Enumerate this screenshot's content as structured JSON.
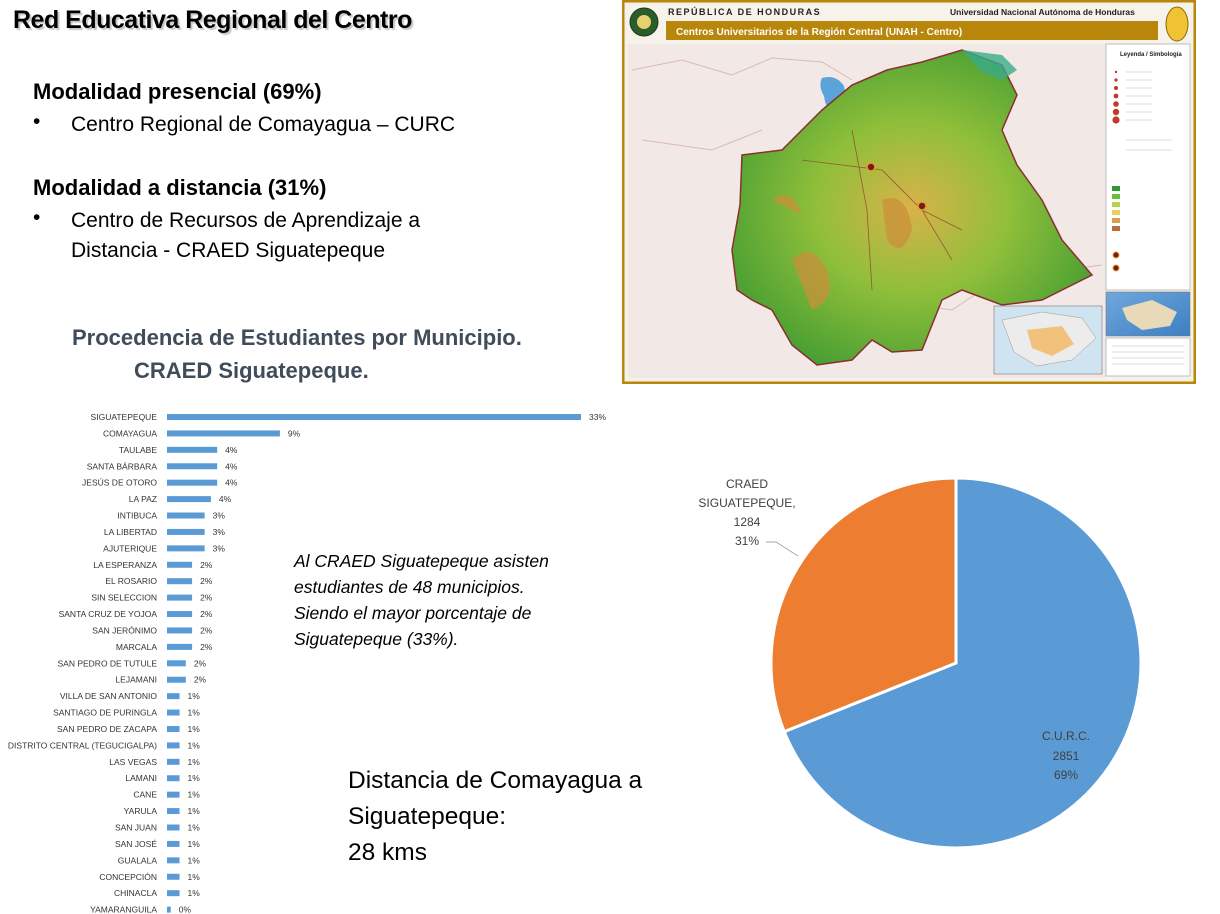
{
  "title": "Red Educativa Regional del Centro",
  "modalities": [
    {
      "heading": "Modalidad presencial (69%)",
      "items": [
        "Centro Regional de Comayagua – CURC"
      ]
    },
    {
      "heading": "Modalidad a distancia (31%)",
      "items": [
        "Centro de Recursos de Aprendizaje a",
        "Distancia - CRAED Siguatepeque"
      ]
    }
  ],
  "bullet_char": "•",
  "procedencia": {
    "line1": "Procedencia de Estudiantes por Municipio.",
    "line2": "CRAED Siguatepeque."
  },
  "note": [
    "Al CRAED Siguatepeque asisten",
    "estudiantes de 48 municipios.",
    "Siendo el mayor porcentaje de",
    "Siguatepeque (33%)."
  ],
  "distance": [
    "Distancia de Comayagua a",
    "Siguatepeque:",
    "28 kms"
  ],
  "map": {
    "header_left": "REPÚBLICA  DE  HONDURAS",
    "header_right": "Universidad Nacional Autónoma de Honduras",
    "subtitle": "Centros Universitarios de la Región Central (UNAH - Centro)",
    "legend_title": "Leyenda / Simbología",
    "border_color": "#b8860b",
    "banner_color": "#b8860b"
  },
  "chart_data": [
    {
      "type": "bar",
      "orientation": "horizontal",
      "categories": [
        "SIGUATEPEQUE",
        "COMAYAGUA",
        "TAULABE",
        "SANTA BÁRBARA",
        "JESÚS DE OTORO",
        "LA PAZ",
        "INTIBUCA",
        "LA LIBERTAD",
        "AJUTERIQUE",
        "LA ESPERANZA",
        "EL ROSARIO",
        "SIN SELECCION",
        "SANTA CRUZ DE YOJOA",
        "SAN JERÓNIMO",
        "MARCALA",
        "SAN PEDRO DE TUTULE",
        "LEJAMANI",
        "VILLA DE SAN ANTONIO",
        "SANTIAGO DE PURINGLA",
        "SAN PEDRO DE ZACAPA",
        "DISTRITO CENTRAL (TEGUCIGALPA)",
        "LAS VEGAS",
        "LAMANI",
        "CANE",
        "YARULA",
        "SAN JUAN",
        "SAN JOSÉ",
        "GUALALA",
        "CONCEPCIÓN",
        "CHINACLA",
        "YAMARANGUILA"
      ],
      "values": [
        33,
        9,
        4,
        4,
        4,
        3.5,
        3,
        3,
        3,
        2,
        2,
        2,
        2,
        2,
        2,
        1.5,
        1.5,
        1,
        1,
        1,
        1,
        1,
        1,
        1,
        1,
        1,
        1,
        1,
        1,
        1,
        0.3
      ],
      "labels": [
        "33%",
        "9%",
        "4%",
        "4%",
        "4%",
        "4%",
        "3%",
        "3%",
        "3%",
        "2%",
        "2%",
        "2%",
        "2%",
        "2%",
        "2%",
        "2%",
        "2%",
        "1%",
        "1%",
        "1%",
        "1%",
        "1%",
        "1%",
        "1%",
        "1%",
        "1%",
        "1%",
        "1%",
        "1%",
        "1%",
        "0%"
      ],
      "bar_color": "#5b9bd5",
      "xlim": [
        0,
        33
      ]
    },
    {
      "type": "pie",
      "slices": [
        {
          "name": "C.U.R.C.",
          "value": 2851,
          "percent": "69%",
          "color": "#5b9bd5"
        },
        {
          "name": "CRAED SIGUATEPEQUE,",
          "value": 1284,
          "percent": "31%",
          "color": "#ed7d31"
        }
      ]
    }
  ]
}
